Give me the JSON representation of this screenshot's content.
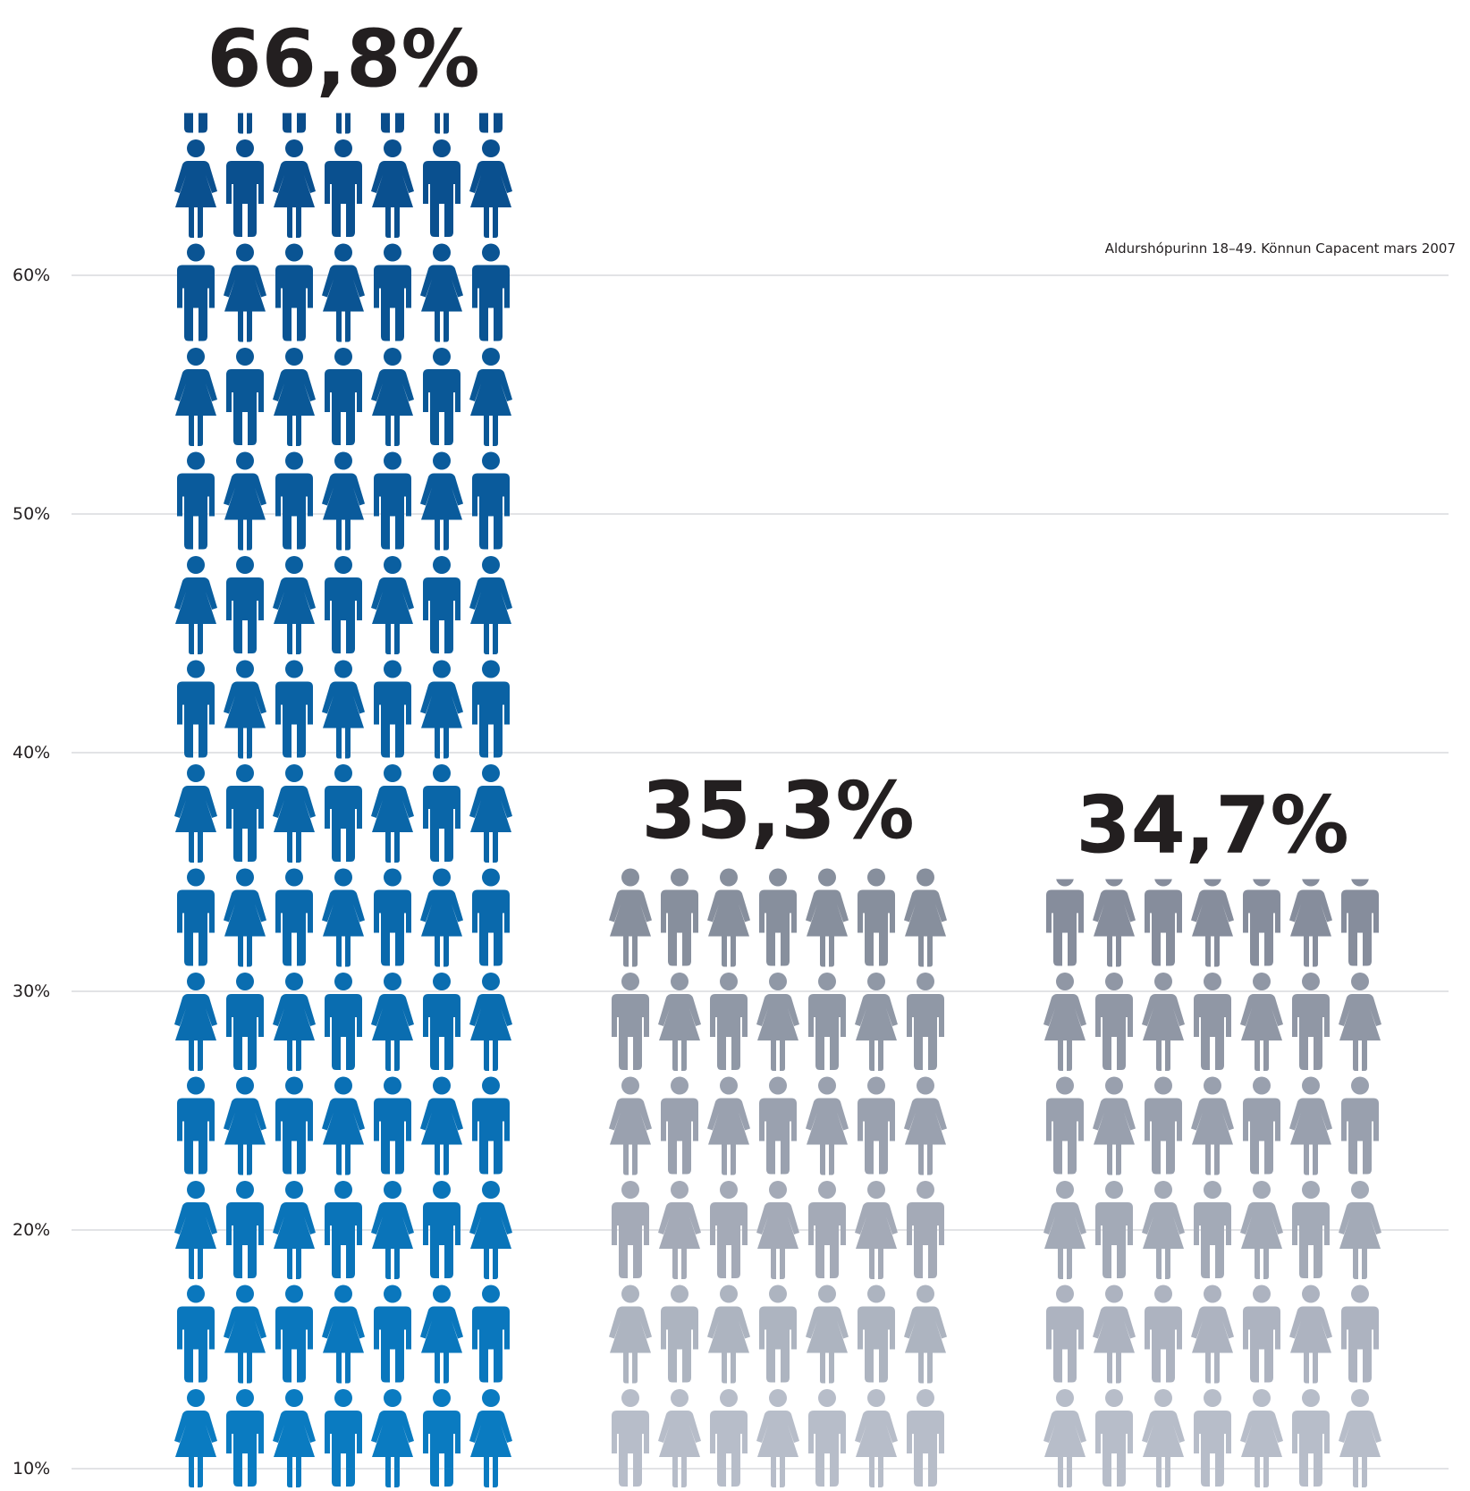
{
  "chart_data": {
    "type": "bar",
    "title": "",
    "xlabel": "",
    "ylabel": "",
    "categories": [
      "",
      "",
      ""
    ],
    "values": [
      66.8,
      35.3,
      34.7
    ],
    "value_labels": [
      "66,8%",
      "35,3%",
      "34,7%"
    ],
    "y_ticks": [
      "10%",
      "20%",
      "30%",
      "40%",
      "50%",
      "60%"
    ],
    "y_tick_values": [
      10,
      20,
      30,
      40,
      50,
      60
    ],
    "ylim": [
      10,
      70
    ],
    "grid": true,
    "marks": "pictogram-people",
    "source_note": "Aldurshópurinn 18–49. Könnun Capacent mars 2007",
    "colors": {
      "bar_1_bottom": "#0a7bc1",
      "bar_1_top": "#0a4c8a",
      "bar_2_bottom": "#b7bdc9",
      "bar_2_top": "#7d8594",
      "bar_3_bottom": "#b7bdc9",
      "bar_3_top": "#7d8594",
      "grid": "#d9dadd",
      "text": "#231f20"
    }
  }
}
